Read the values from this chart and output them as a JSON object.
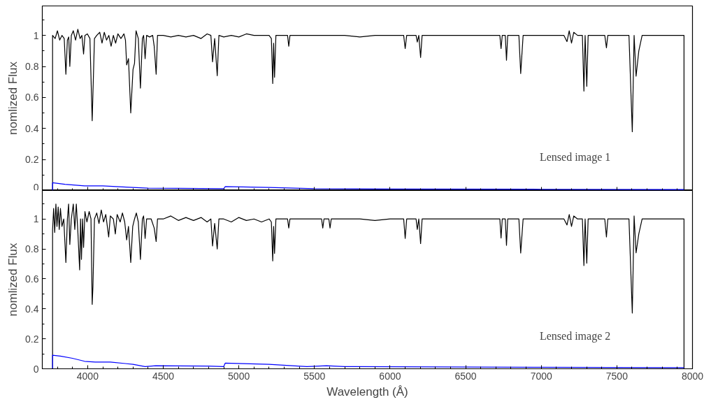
{
  "chart_data": [
    {
      "type": "line",
      "ylabel": "nomlized Flux",
      "annotations": [
        "Lensed image 1"
      ],
      "xlim": [
        3700,
        8000
      ],
      "xticks": [
        4000,
        4500,
        5000,
        5500,
        6000,
        6500,
        7000,
        7500,
        8000
      ],
      "ylim": [
        0,
        1.19
      ],
      "yticks": [
        0,
        0.2,
        0.4,
        0.6,
        0.8,
        1
      ],
      "tick_labels": "y",
      "series": [
        {
          "color": "#000000",
          "x": [
            3768,
            3768,
            3785,
            3800,
            3815,
            3830,
            3845,
            3856,
            3866,
            3875,
            3882,
            3892,
            3905,
            3920,
            3935,
            3950,
            3962,
            3973,
            3982,
            3998,
            4015,
            4030,
            4045,
            4060,
            4080,
            4095,
            4110,
            4125,
            4140,
            4155,
            4170,
            4185,
            4200,
            4220,
            4240,
            4250,
            4258,
            4270,
            4285,
            4300,
            4310,
            4320,
            4335,
            4349,
            4362,
            4370,
            4380,
            4390,
            4410,
            4430,
            4440,
            4453,
            4462,
            4500,
            4550,
            4600,
            4650,
            4700,
            4750,
            4790,
            4815,
            4826,
            4840,
            4857,
            4868,
            4900,
            4950,
            5000,
            5050,
            5100,
            5150,
            5200,
            5215,
            5224,
            5230,
            5236,
            5245,
            5300,
            5322,
            5330,
            5338,
            5400,
            5500,
            5600,
            5700,
            5800,
            5900,
            6000,
            6090,
            6100,
            6110,
            6172,
            6180,
            6190,
            6202,
            6212,
            6300,
            6400,
            6500,
            6600,
            6700,
            6726,
            6734,
            6742,
            6762,
            6770,
            6778,
            6852,
            6864,
            6880,
            7000,
            7100,
            7150,
            7170,
            7185,
            7200,
            7215,
            7240,
            7272,
            7282,
            7290,
            7301,
            7310,
            7350,
            7420,
            7431,
            7440,
            7500,
            7580,
            7602,
            7614,
            7627,
            7645,
            7667,
            7700,
            7800,
            7900,
            7944,
            7944
          ],
          "values": [
            0,
            1.0,
            0.98,
            1.03,
            0.97,
            1.0,
            0.98,
            0.75,
            0.97,
            0.99,
            0.8,
            1.0,
            1.03,
            0.97,
            1.04,
            0.98,
            1.0,
            0.88,
            1.0,
            1.01,
            0.98,
            0.45,
            0.98,
            1.0,
            1.02,
            0.95,
            1.02,
            0.97,
            1.0,
            0.93,
            1.0,
            0.95,
            1.01,
            0.98,
            1.01,
            0.97,
            0.81,
            0.85,
            0.5,
            0.78,
            0.82,
            1.03,
            0.98,
            0.66,
            0.98,
            1.0,
            0.85,
            1.0,
            0.99,
            1.0,
            0.93,
            0.75,
            1.0,
            1.0,
            0.99,
            1.0,
            0.99,
            1.0,
            0.98,
            1.01,
            1.0,
            0.83,
            0.98,
            0.74,
            1.0,
            0.99,
            1.0,
            0.99,
            1.01,
            1.0,
            1.0,
            1.0,
            0.98,
            0.69,
            0.95,
            0.73,
            1.0,
            1.0,
            1.0,
            0.93,
            1.0,
            1.0,
            1.0,
            1.0,
            1.0,
            0.99,
            1.0,
            1.0,
            1.0,
            0.915,
            1.0,
            1.0,
            0.957,
            1.0,
            0.858,
            1.0,
            1.0,
            1.0,
            1.0,
            1.0,
            1.0,
            1.0,
            0.915,
            1.0,
            1.0,
            0.84,
            1.0,
            1.0,
            0.754,
            1.0,
            1.0,
            1.0,
            1.0,
            0.96,
            1.03,
            0.95,
            1.02,
            1.0,
            1.0,
            0.641,
            1.0,
            0.672,
            1.0,
            1.0,
            1.0,
            0.92,
            1.0,
            1.0,
            1.0,
            0.379,
            1.0,
            0.737,
            0.9,
            1.0,
            1.0,
            1.0,
            1.0,
            1.0,
            0
          ]
        },
        {
          "color": "#0000ff",
          "x": [
            3768,
            3768,
            3850,
            3980,
            4100,
            4300,
            4400,
            4900,
            4910,
            5200,
            5500,
            6000,
            7000,
            7944
          ],
          "values": [
            0,
            0.05,
            0.04,
            0.03,
            0.03,
            0.02,
            0.015,
            0.012,
            0.025,
            0.02,
            0.012,
            0.01,
            0.008,
            0.006
          ]
        }
      ]
    },
    {
      "type": "line",
      "xlabel": "Wavelength (Å)",
      "ylabel": "nomlized Flux",
      "annotations": [
        "Lensed image 2"
      ],
      "xlim": [
        3700,
        8000
      ],
      "xticks": [
        4000,
        4500,
        5000,
        5500,
        6000,
        6500,
        7000,
        7500,
        8000
      ],
      "ylim": [
        0,
        1.19
      ],
      "yticks": [
        0,
        0.2,
        0.4,
        0.6,
        0.8,
        1
      ],
      "series": [
        {
          "color": "#000000",
          "x": [
            3768,
            3768,
            3775,
            3782,
            3790,
            3797,
            3805,
            3812,
            3820,
            3830,
            3842,
            3856,
            3866,
            3874,
            3882,
            3892,
            3905,
            3915,
            3925,
            3935,
            3947,
            3953,
            3959,
            3966,
            3973,
            3982,
            3995,
            4010,
            4022,
            4030,
            4035,
            4045,
            4060,
            4075,
            4090,
            4105,
            4120,
            4139,
            4150,
            4170,
            4183,
            4195,
            4215,
            4230,
            4245,
            4258,
            4270,
            4285,
            4298,
            4310,
            4322,
            4335,
            4349,
            4362,
            4370,
            4380,
            4390,
            4420,
            4440,
            4453,
            4462,
            4500,
            4550,
            4600,
            4650,
            4700,
            4750,
            4790,
            4815,
            4826,
            4840,
            4857,
            4868,
            4900,
            4950,
            5000,
            5050,
            5100,
            5150,
            5200,
            5215,
            5224,
            5230,
            5236,
            5245,
            5300,
            5322,
            5330,
            5338,
            5400,
            5500,
            5547,
            5555,
            5563,
            5595,
            5603,
            5611,
            5700,
            5800,
            5900,
            6000,
            6090,
            6100,
            6110,
            6172,
            6180,
            6190,
            6202,
            6212,
            6300,
            6400,
            6500,
            6600,
            6700,
            6726,
            6734,
            6742,
            6762,
            6770,
            6778,
            6852,
            6864,
            6880,
            7000,
            7100,
            7150,
            7170,
            7185,
            7200,
            7215,
            7240,
            7272,
            7282,
            7290,
            7301,
            7310,
            7350,
            7420,
            7431,
            7440,
            7500,
            7580,
            7602,
            7614,
            7627,
            7645,
            7667,
            7700,
            7800,
            7900,
            7944,
            7944
          ],
          "values": [
            0,
            0.93,
            1.07,
            0.91,
            1.1,
            0.95,
            1.08,
            0.93,
            1.07,
            0.95,
            1.0,
            0.71,
            1.0,
            1.1,
            0.83,
            1.0,
            1.1,
            0.93,
            1.1,
            0.92,
            0.66,
            1.0,
            0.73,
            1.0,
            0.81,
            1.05,
            0.98,
            1.05,
            1.0,
            0.43,
            0.55,
            1.0,
            1.04,
            0.97,
            1.06,
            0.98,
            1.03,
            0.88,
            1.02,
            1.0,
            0.9,
            1.03,
            0.98,
            1.04,
            0.98,
            0.86,
            0.95,
            0.71,
            0.95,
            1.0,
            1.04,
            0.98,
            0.73,
            1.0,
            1.02,
            0.87,
            1.0,
            1.0,
            0.94,
            0.85,
            1.0,
            1.0,
            1.02,
            0.99,
            1.01,
            0.99,
            1.01,
            0.98,
            1.0,
            0.82,
            0.97,
            0.8,
            1.0,
            1.0,
            0.98,
            1.01,
            0.99,
            1.0,
            0.98,
            1.0,
            0.98,
            0.72,
            0.95,
            0.77,
            1.0,
            1.0,
            1.0,
            0.94,
            1.0,
            1.0,
            1.0,
            1.0,
            0.94,
            1.0,
            1.0,
            0.94,
            1.0,
            1.0,
            1.0,
            0.99,
            1.0,
            1.0,
            0.87,
            1.0,
            1.0,
            0.93,
            1.0,
            0.836,
            1.0,
            1.0,
            1.0,
            1.0,
            1.0,
            1.0,
            1.0,
            0.873,
            1.0,
            1.0,
            0.824,
            1.0,
            1.0,
            0.773,
            1.0,
            1.0,
            1.0,
            1.0,
            0.96,
            1.03,
            0.95,
            1.02,
            1.0,
            1.0,
            0.689,
            1.0,
            0.705,
            1.0,
            1.0,
            1.0,
            0.88,
            1.0,
            1.0,
            1.0,
            0.372,
            1.02,
            0.774,
            0.9,
            1.0,
            1.0,
            1.0,
            1.0,
            1.0,
            0
          ]
        },
        {
          "color": "#0000ff",
          "x": [
            3768,
            3768,
            3820,
            3900,
            3980,
            4050,
            4150,
            4250,
            4300,
            4380,
            4450,
            4800,
            4900,
            4910,
            5200,
            5450,
            5580,
            5700,
            7000,
            7944
          ],
          "values": [
            0,
            0.09,
            0.085,
            0.07,
            0.05,
            0.045,
            0.045,
            0.035,
            0.03,
            0.015,
            0.02,
            0.018,
            0.015,
            0.038,
            0.03,
            0.015,
            0.02,
            0.015,
            0.01,
            0.008
          ]
        }
      ]
    }
  ]
}
